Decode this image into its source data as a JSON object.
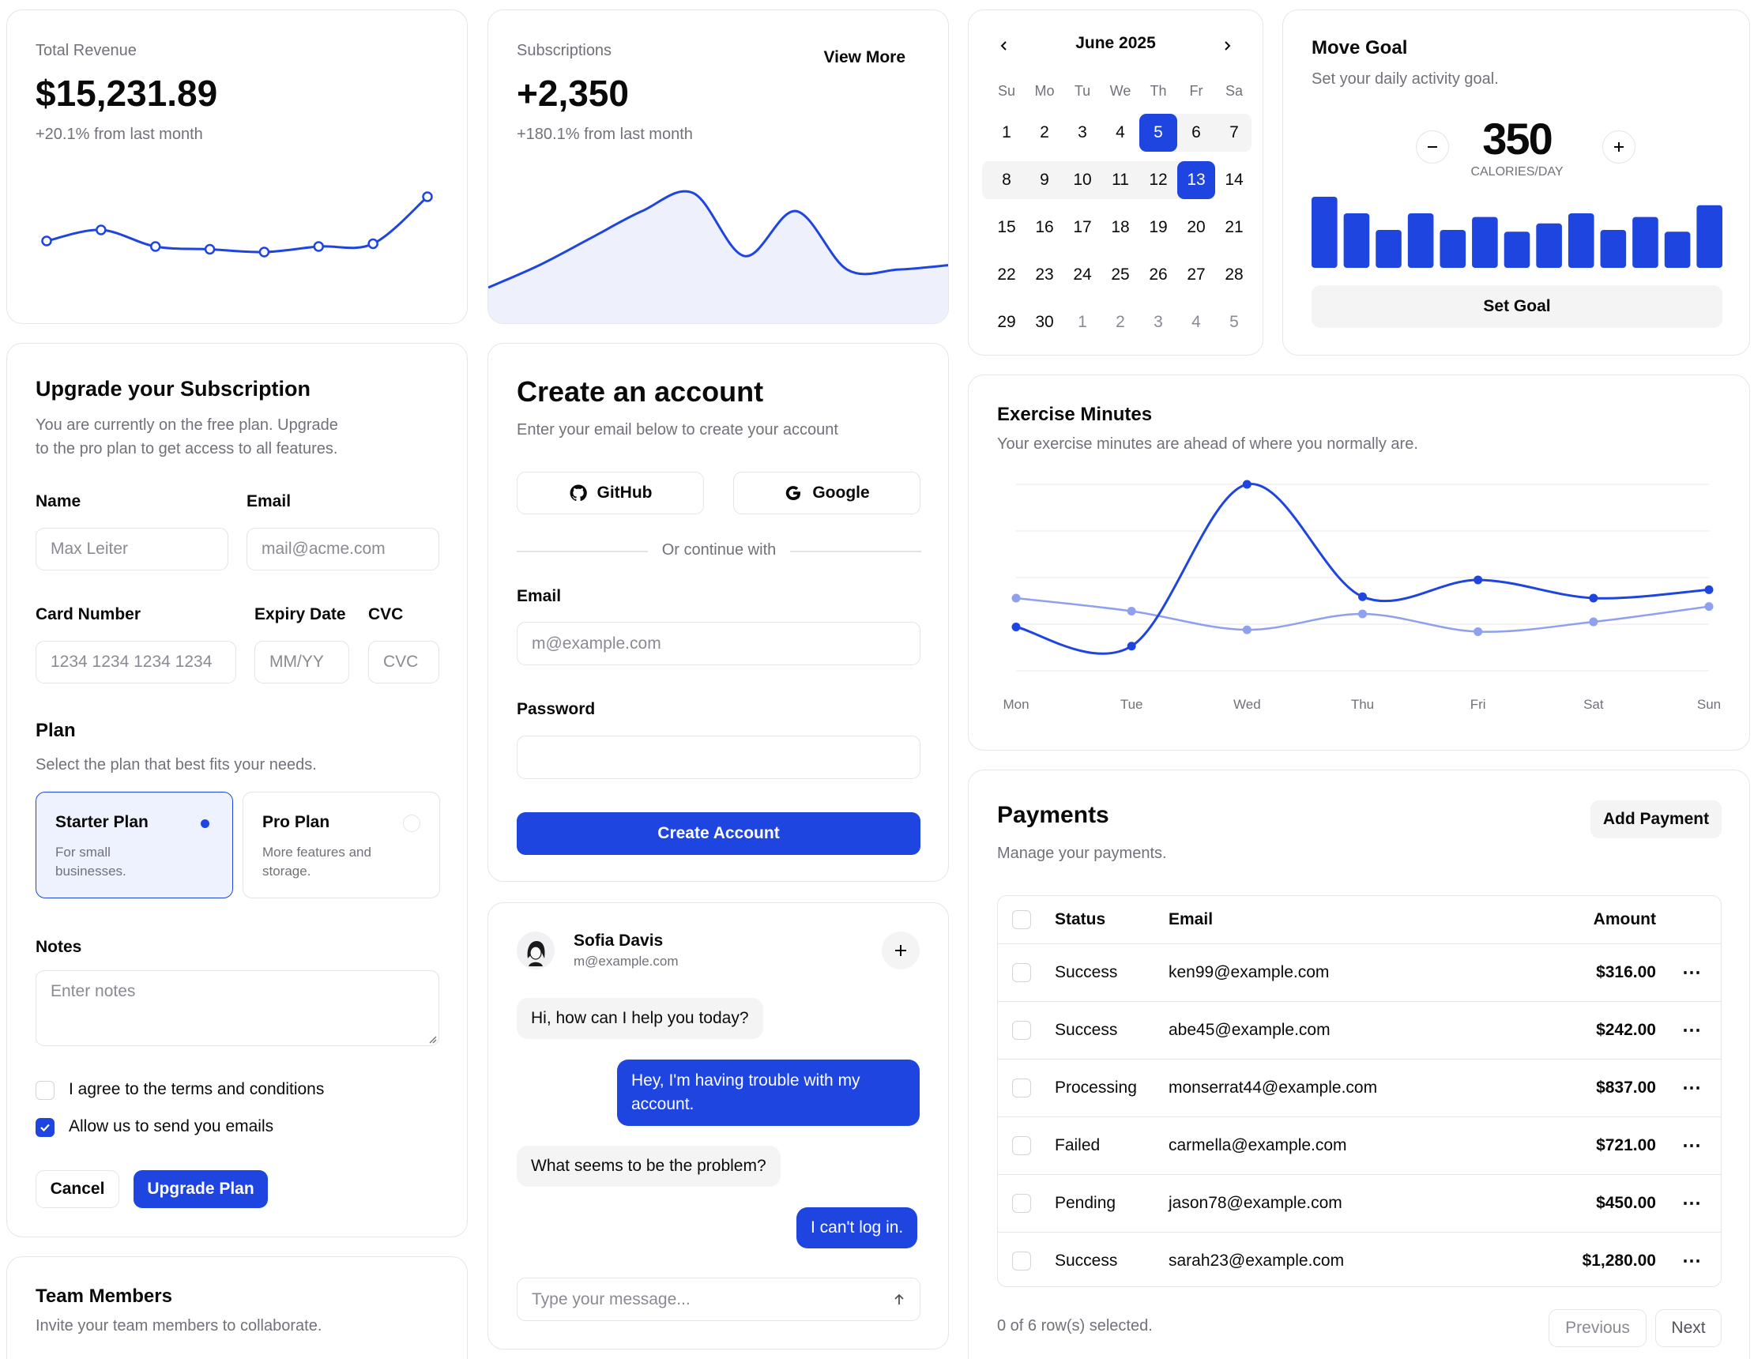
{
  "revenue": {
    "label": "Total Revenue",
    "value": "$15,231.89",
    "change": "+20.1% from last month"
  },
  "subscriptions": {
    "label": "Subscriptions",
    "value": "+2,350",
    "change": "+180.1% from last month",
    "view_more": "View More"
  },
  "calendar": {
    "month": "June 2025",
    "weekdays": [
      "Su",
      "Mo",
      "Tu",
      "We",
      "Th",
      "Fr",
      "Sa"
    ],
    "weeks": [
      [
        "1",
        "2",
        "3",
        "4",
        "5",
        "6",
        "7"
      ],
      [
        "8",
        "9",
        "10",
        "11",
        "12",
        "13",
        "14"
      ],
      [
        "15",
        "16",
        "17",
        "18",
        "19",
        "20",
        "21"
      ],
      [
        "22",
        "23",
        "24",
        "25",
        "26",
        "27",
        "28"
      ],
      [
        "29",
        "30",
        "1",
        "2",
        "3",
        "4",
        "5"
      ]
    ],
    "selected_days": [
      "5",
      "13"
    ]
  },
  "move_goal": {
    "title": "Move Goal",
    "description": "Set your daily activity goal.",
    "value": "350",
    "unit": "CALORIES/DAY",
    "button": "Set Goal",
    "bars": [
      400,
      300,
      200,
      300,
      200,
      278,
      189,
      239,
      300,
      200,
      278,
      189,
      349
    ]
  },
  "upgrade": {
    "title": "Upgrade your Subscription",
    "description_line1": "You are currently on the free plan. Upgrade",
    "description_line2": "to the pro plan to get access to all features.",
    "name_label": "Name",
    "name_placeholder": "Max Leiter",
    "email_label": "Email",
    "email_placeholder": "mail@acme.com",
    "card_label": "Card Number",
    "card_placeholder": "1234 1234 1234 1234",
    "expiry_label": "Expiry Date",
    "expiry_placeholder": "MM/YY",
    "cvc_label": "CVC",
    "cvc_placeholder": "CVC",
    "plan_label": "Plan",
    "plan_description": "Select the plan that best fits your needs.",
    "starter_title": "Starter Plan",
    "starter_desc_line1": "For small",
    "starter_desc_line2": "businesses.",
    "pro_title": "Pro Plan",
    "pro_desc_line1": "More features and",
    "pro_desc_line2": "storage.",
    "notes_label": "Notes",
    "notes_placeholder": "Enter notes",
    "terms_label": "I agree to the terms and conditions",
    "emails_label": "Allow us to send you emails",
    "cancel": "Cancel",
    "submit": "Upgrade Plan"
  },
  "team": {
    "title": "Team Members",
    "description": "Invite your team members to collaborate."
  },
  "create_account": {
    "title": "Create an account",
    "description": "Enter your email below to create your account",
    "github": "GitHub",
    "google": "Google",
    "divider": "Or continue with",
    "email_label": "Email",
    "email_placeholder": "m@example.com",
    "password_label": "Password",
    "submit": "Create Account"
  },
  "chat": {
    "name": "Sofia Davis",
    "email": "m@example.com",
    "messages": [
      "Hi, how can I help you today?",
      "Hey, I'm having trouble with my",
      "account.",
      "What seems to be the problem?",
      "I can't log in."
    ],
    "input_placeholder": "Type your message..."
  },
  "exercise": {
    "title": "Exercise Minutes",
    "description": "Your exercise minutes are ahead of where you normally are."
  },
  "payments": {
    "title": "Payments",
    "description": "Manage your payments.",
    "add_button": "Add Payment",
    "columns": [
      "Status",
      "Email",
      "Amount"
    ],
    "rows": [
      {
        "status": "Success",
        "email": "ken99@example.com",
        "amount": "$316.00"
      },
      {
        "status": "Success",
        "email": "abe45@example.com",
        "amount": "$242.00"
      },
      {
        "status": "Processing",
        "email": "monserrat44@example.com",
        "amount": "$837.00"
      },
      {
        "status": "Failed",
        "email": "carmella@example.com",
        "amount": "$721.00"
      },
      {
        "status": "Pending",
        "email": "jason78@example.com",
        "amount": "$450.00"
      },
      {
        "status": "Success",
        "email": "sarah23@example.com",
        "amount": "$1,280.00"
      }
    ],
    "selection": "0 of 6 row(s) selected.",
    "previous": "Previous",
    "next": "Next"
  },
  "colors": {
    "accent": "#1f45e0",
    "accent_light": "#8ea0ee",
    "border": "#e6e6ea",
    "muted": "#71717a"
  },
  "chart_data": [
    {
      "type": "line",
      "x": [
        1,
        2,
        3,
        4,
        5,
        6,
        7,
        8
      ],
      "values": [
        10,
        12,
        9,
        8.5,
        8,
        9,
        9.5,
        18
      ]
    },
    {
      "type": "area",
      "x": [
        1,
        2,
        3,
        4,
        5,
        6,
        7,
        8,
        9,
        10
      ],
      "values": [
        3,
        8,
        14,
        20,
        24,
        10,
        20,
        7,
        7,
        8
      ]
    },
    {
      "type": "line",
      "categories": [
        "Mon",
        "Tue",
        "Wed",
        "Thu",
        "Fri",
        "Sat",
        "Sun"
      ],
      "ylim": [
        0,
        400
      ],
      "series": [
        {
          "values": [
            94,
            53,
            400,
            159,
            195,
            156,
            174
          ]
        },
        {
          "values": [
            156,
            128,
            88,
            122,
            84,
            105,
            138
          ]
        }
      ]
    }
  ]
}
